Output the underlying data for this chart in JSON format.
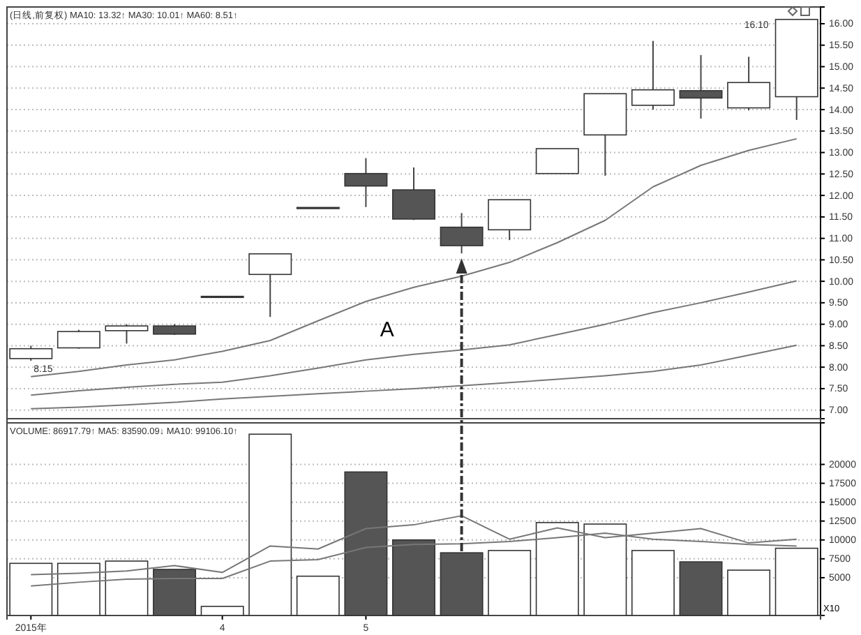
{
  "chart_data": [
    {
      "type": "candlestick",
      "title": "(日线,前复权) MA10: 13.32↑ MA30: 10.01↑ MA60: 8.51↑",
      "categories": [
        null,
        null,
        null,
        null,
        null,
        null,
        null,
        null,
        null,
        null,
        null,
        null,
        null,
        null,
        null,
        null,
        null
      ],
      "ohlc": [
        [
          8.2,
          8.5,
          8.15,
          8.43
        ],
        [
          8.45,
          8.87,
          8.43,
          8.83
        ],
        [
          8.85,
          9.0,
          8.55,
          8.96
        ],
        [
          8.96,
          9.0,
          8.75,
          8.77
        ],
        [
          9.65,
          9.65,
          9.65,
          9.65
        ],
        [
          10.16,
          10.65,
          9.17,
          10.64
        ],
        [
          11.72,
          11.72,
          11.72,
          11.72
        ],
        [
          12.51,
          12.87,
          11.73,
          12.22
        ],
        [
          12.13,
          12.65,
          11.43,
          11.45
        ],
        [
          11.26,
          11.59,
          10.65,
          10.83
        ],
        [
          11.2,
          11.9,
          10.96,
          11.9
        ],
        [
          12.51,
          13.09,
          12.51,
          13.09
        ],
        [
          13.41,
          14.37,
          12.46,
          14.37
        ],
        [
          14.1,
          15.6,
          14.0,
          14.46
        ],
        [
          14.44,
          15.27,
          13.79,
          14.27
        ],
        [
          14.04,
          15.23,
          13.98,
          14.63
        ],
        [
          14.3,
          16.1,
          13.76,
          16.1
        ]
      ],
      "colors": [
        "#ffffff",
        "#ffffff",
        "#ffffff",
        "#555555",
        "#ffffff",
        "#ffffff",
        "#ffffff",
        "#555555",
        "#555555",
        "#555555",
        "#ffffff",
        "#ffffff",
        "#ffffff",
        "#ffffff",
        "#555555",
        "#ffffff",
        "#ffffff"
      ],
      "series": [
        {
          "type": "line",
          "color": "#777777",
          "values": [
            7.78,
            7.9,
            8.05,
            8.17,
            8.37,
            8.62,
            9.08,
            9.53,
            9.86,
            10.12,
            10.44,
            10.9,
            11.42,
            12.2,
            12.7,
            13.05,
            13.32
          ]
        },
        {
          "type": "line",
          "color": "#777777",
          "values": [
            7.35,
            7.45,
            7.53,
            7.6,
            7.65,
            7.8,
            7.98,
            8.17,
            8.3,
            8.4,
            8.52,
            8.76,
            9.0,
            9.27,
            9.5,
            9.75,
            10.01
          ]
        },
        {
          "type": "line",
          "color": "#777777",
          "values": [
            7.03,
            7.07,
            7.12,
            7.18,
            7.26,
            7.32,
            7.38,
            7.44,
            7.5,
            7.57,
            7.64,
            7.72,
            7.8,
            7.9,
            8.05,
            8.28,
            8.51
          ]
        }
      ],
      "ylim": [
        6.8,
        16.39
      ],
      "yticks": [
        {
          "value": 7,
          "label": "7.00"
        },
        {
          "value": 7.5,
          "label": "7.50"
        },
        {
          "value": 8,
          "label": "8.00"
        },
        {
          "value": 8.5,
          "label": "8.50"
        },
        {
          "value": 9,
          "label": "9.00"
        },
        {
          "value": 9.5,
          "label": "9.50"
        },
        {
          "value": 10,
          "label": "10.00"
        },
        {
          "value": 10.5,
          "label": "10.50"
        },
        {
          "value": 11,
          "label": "11.00"
        },
        {
          "value": 11.5,
          "label": "11.50"
        },
        {
          "value": 12,
          "label": "12.00"
        },
        {
          "value": 12.5,
          "label": "12.50"
        },
        {
          "value": 13,
          "label": "13.00"
        },
        {
          "value": 13.5,
          "label": "13.50"
        },
        {
          "value": 14,
          "label": "14.00"
        },
        {
          "value": 14.5,
          "label": "14.50"
        },
        {
          "value": 15,
          "label": "15.00"
        },
        {
          "value": 15.5,
          "label": "15.50"
        },
        {
          "value": 16,
          "label": "16.00"
        }
      ],
      "grid": "y",
      "tick_labels": "y",
      "annotations": [
        "A",
        {
          "text": "8.15",
          "y": 8.15
        },
        "16.10"
      ]
    },
    {
      "type": "bar",
      "title": "VOLUME: 86917.79↑ MA5: 83590.09↓ MA10: 99106.10↑",
      "categories": [
        "2015年",
        null,
        null,
        null,
        "4",
        null,
        null,
        "5",
        null,
        null,
        null,
        null,
        null,
        null,
        null,
        null,
        null
      ],
      "series": [
        {
          "type": "bar",
          "values": [
            6900,
            6900,
            7200,
            6100,
            1200,
            24000,
            5200,
            19000,
            10000,
            8300,
            8600,
            12300,
            12100,
            8600,
            7100,
            6000,
            8900
          ],
          "colors": [
            "#ffffff",
            "#ffffff",
            "#ffffff",
            "#555555",
            "#ffffff",
            "#ffffff",
            "#ffffff",
            "#555555",
            "#555555",
            "#555555",
            "#ffffff",
            "#ffffff",
            "#ffffff",
            "#ffffff",
            "#555555",
            "#ffffff",
            "#ffffff"
          ]
        },
        {
          "type": "line",
          "color": "#777777",
          "values": [
            5400,
            5600,
            5900,
            6600,
            5700,
            9200,
            8800,
            11500,
            12000,
            13200,
            10100,
            11600,
            10300,
            10900,
            11500,
            9600,
            10100
          ]
        },
        {
          "type": "line",
          "color": "#777777",
          "values": [
            3900,
            4400,
            4800,
            4900,
            4900,
            7200,
            7400,
            9000,
            9400,
            9500,
            9800,
            10300,
            10900,
            10100,
            9800,
            9400,
            9200
          ]
        }
      ],
      "ylim": [
        0,
        25500
      ],
      "yticks": [
        5000,
        7500,
        10000,
        12500,
        15000,
        17500,
        20000
      ],
      "grid": "y",
      "annotations": [
        "X10"
      ]
    }
  ]
}
